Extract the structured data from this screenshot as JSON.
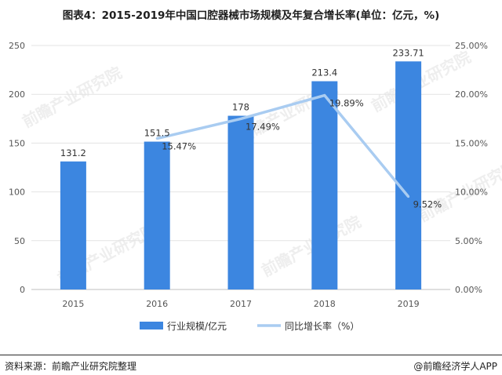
{
  "title": "图表4：2015-2019年中国口腔器械市场规模及年复合增长率(单位：亿元，%)",
  "footer": {
    "source": "资料来源：前瞻产业研究院整理",
    "brand": "@前瞻经济学人APP"
  },
  "watermark": "前瞻产业研究院",
  "colors": {
    "bar": "#3c86e0",
    "line": "#a9ccf1"
  },
  "chart_data": {
    "type": "bar",
    "categories": [
      "2015",
      "2016",
      "2017",
      "2018",
      "2019"
    ],
    "series": [
      {
        "name": "行业规模/亿元",
        "type": "bar",
        "axis": "left",
        "values": [
          131.2,
          151.5,
          178,
          213.4,
          233.71
        ],
        "labels": [
          "131.2",
          "151.5",
          "178",
          "213.4",
          "233.71"
        ]
      },
      {
        "name": "同比增长率（%）",
        "type": "line",
        "axis": "right",
        "values": [
          null,
          15.47,
          17.49,
          19.89,
          9.52
        ],
        "labels": [
          "",
          "15.47%",
          "17.49%",
          "19.89%",
          "9.52%"
        ]
      }
    ],
    "ylim_left": [
      0,
      250
    ],
    "yticks_left": [
      "0",
      "50",
      "100",
      "150",
      "200",
      "250"
    ],
    "ylim_right": [
      0,
      25
    ],
    "yticks_right": [
      "0.00%",
      "5.00%",
      "10.00%",
      "15.00%",
      "20.00%",
      "25.00%"
    ],
    "grid": true,
    "legend": "bottom"
  }
}
